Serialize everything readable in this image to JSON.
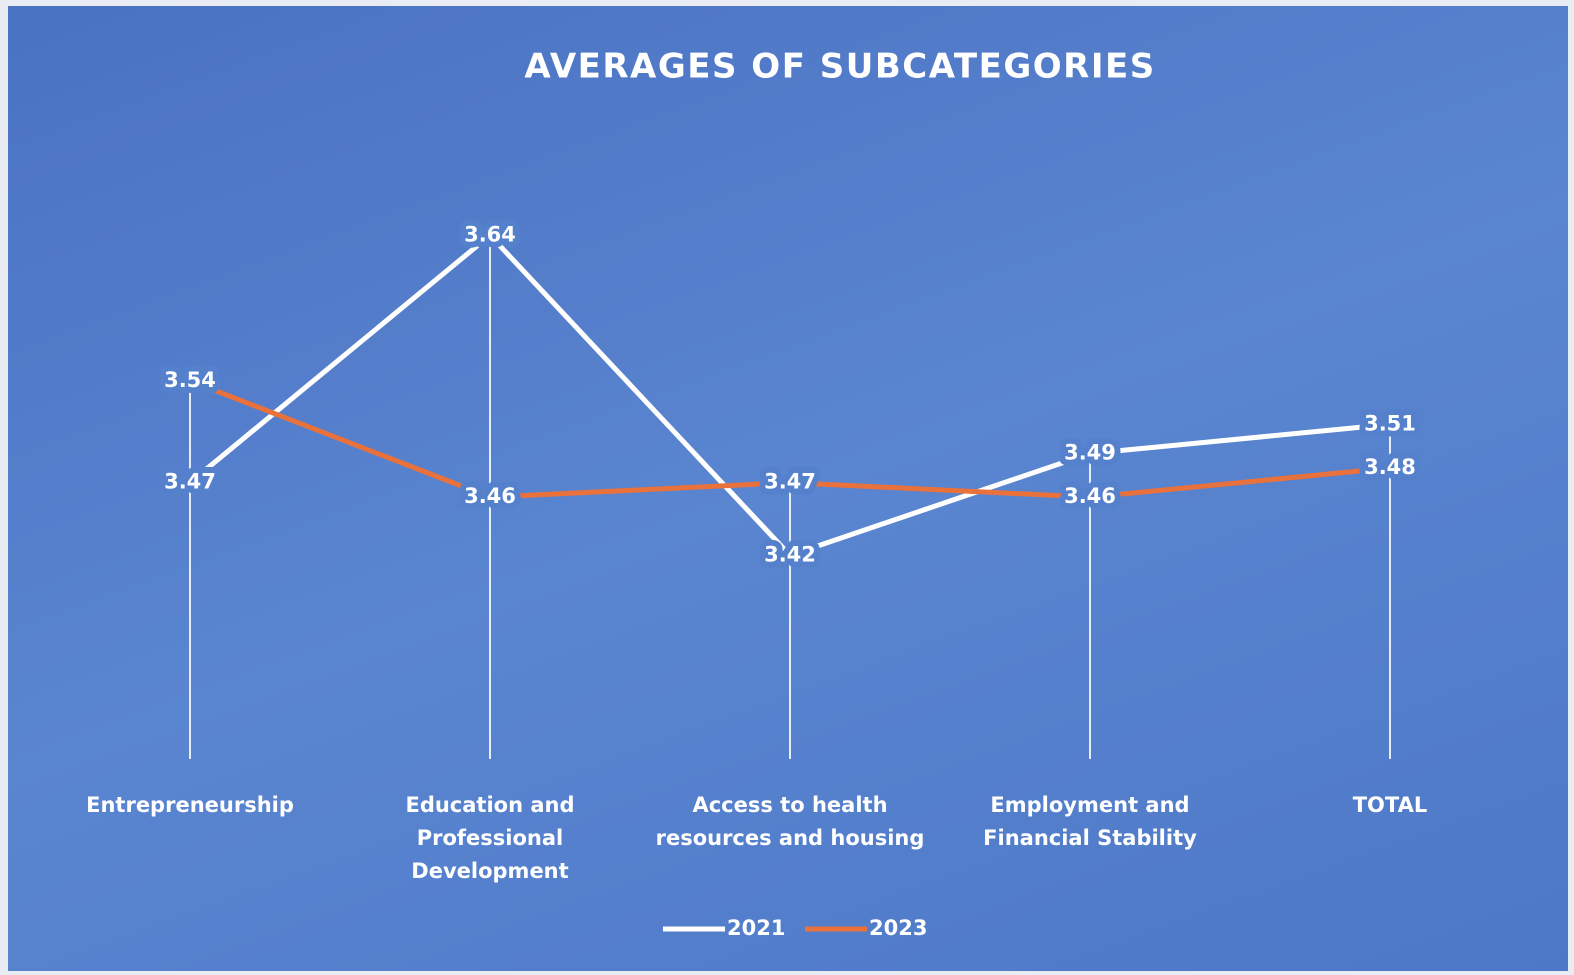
{
  "chart_data": {
    "type": "line",
    "title": "AVERAGES OF SUBCATEGORIES",
    "categories": [
      "Entrepreneurship",
      "Education and Professional Development",
      "Access to health resources and housing",
      "Employment and Financial Stability",
      "TOTAL"
    ],
    "series": [
      {
        "name": "2021",
        "color": "#ffffff",
        "values": [
          3.47,
          3.64,
          3.42,
          3.49,
          3.51
        ]
      },
      {
        "name": "2023",
        "color": "#e8713c",
        "values": [
          3.54,
          3.46,
          3.47,
          3.46,
          3.48
        ]
      }
    ],
    "ylim": [
      3.28,
      3.7
    ],
    "grid": false,
    "legend": "bottom"
  }
}
